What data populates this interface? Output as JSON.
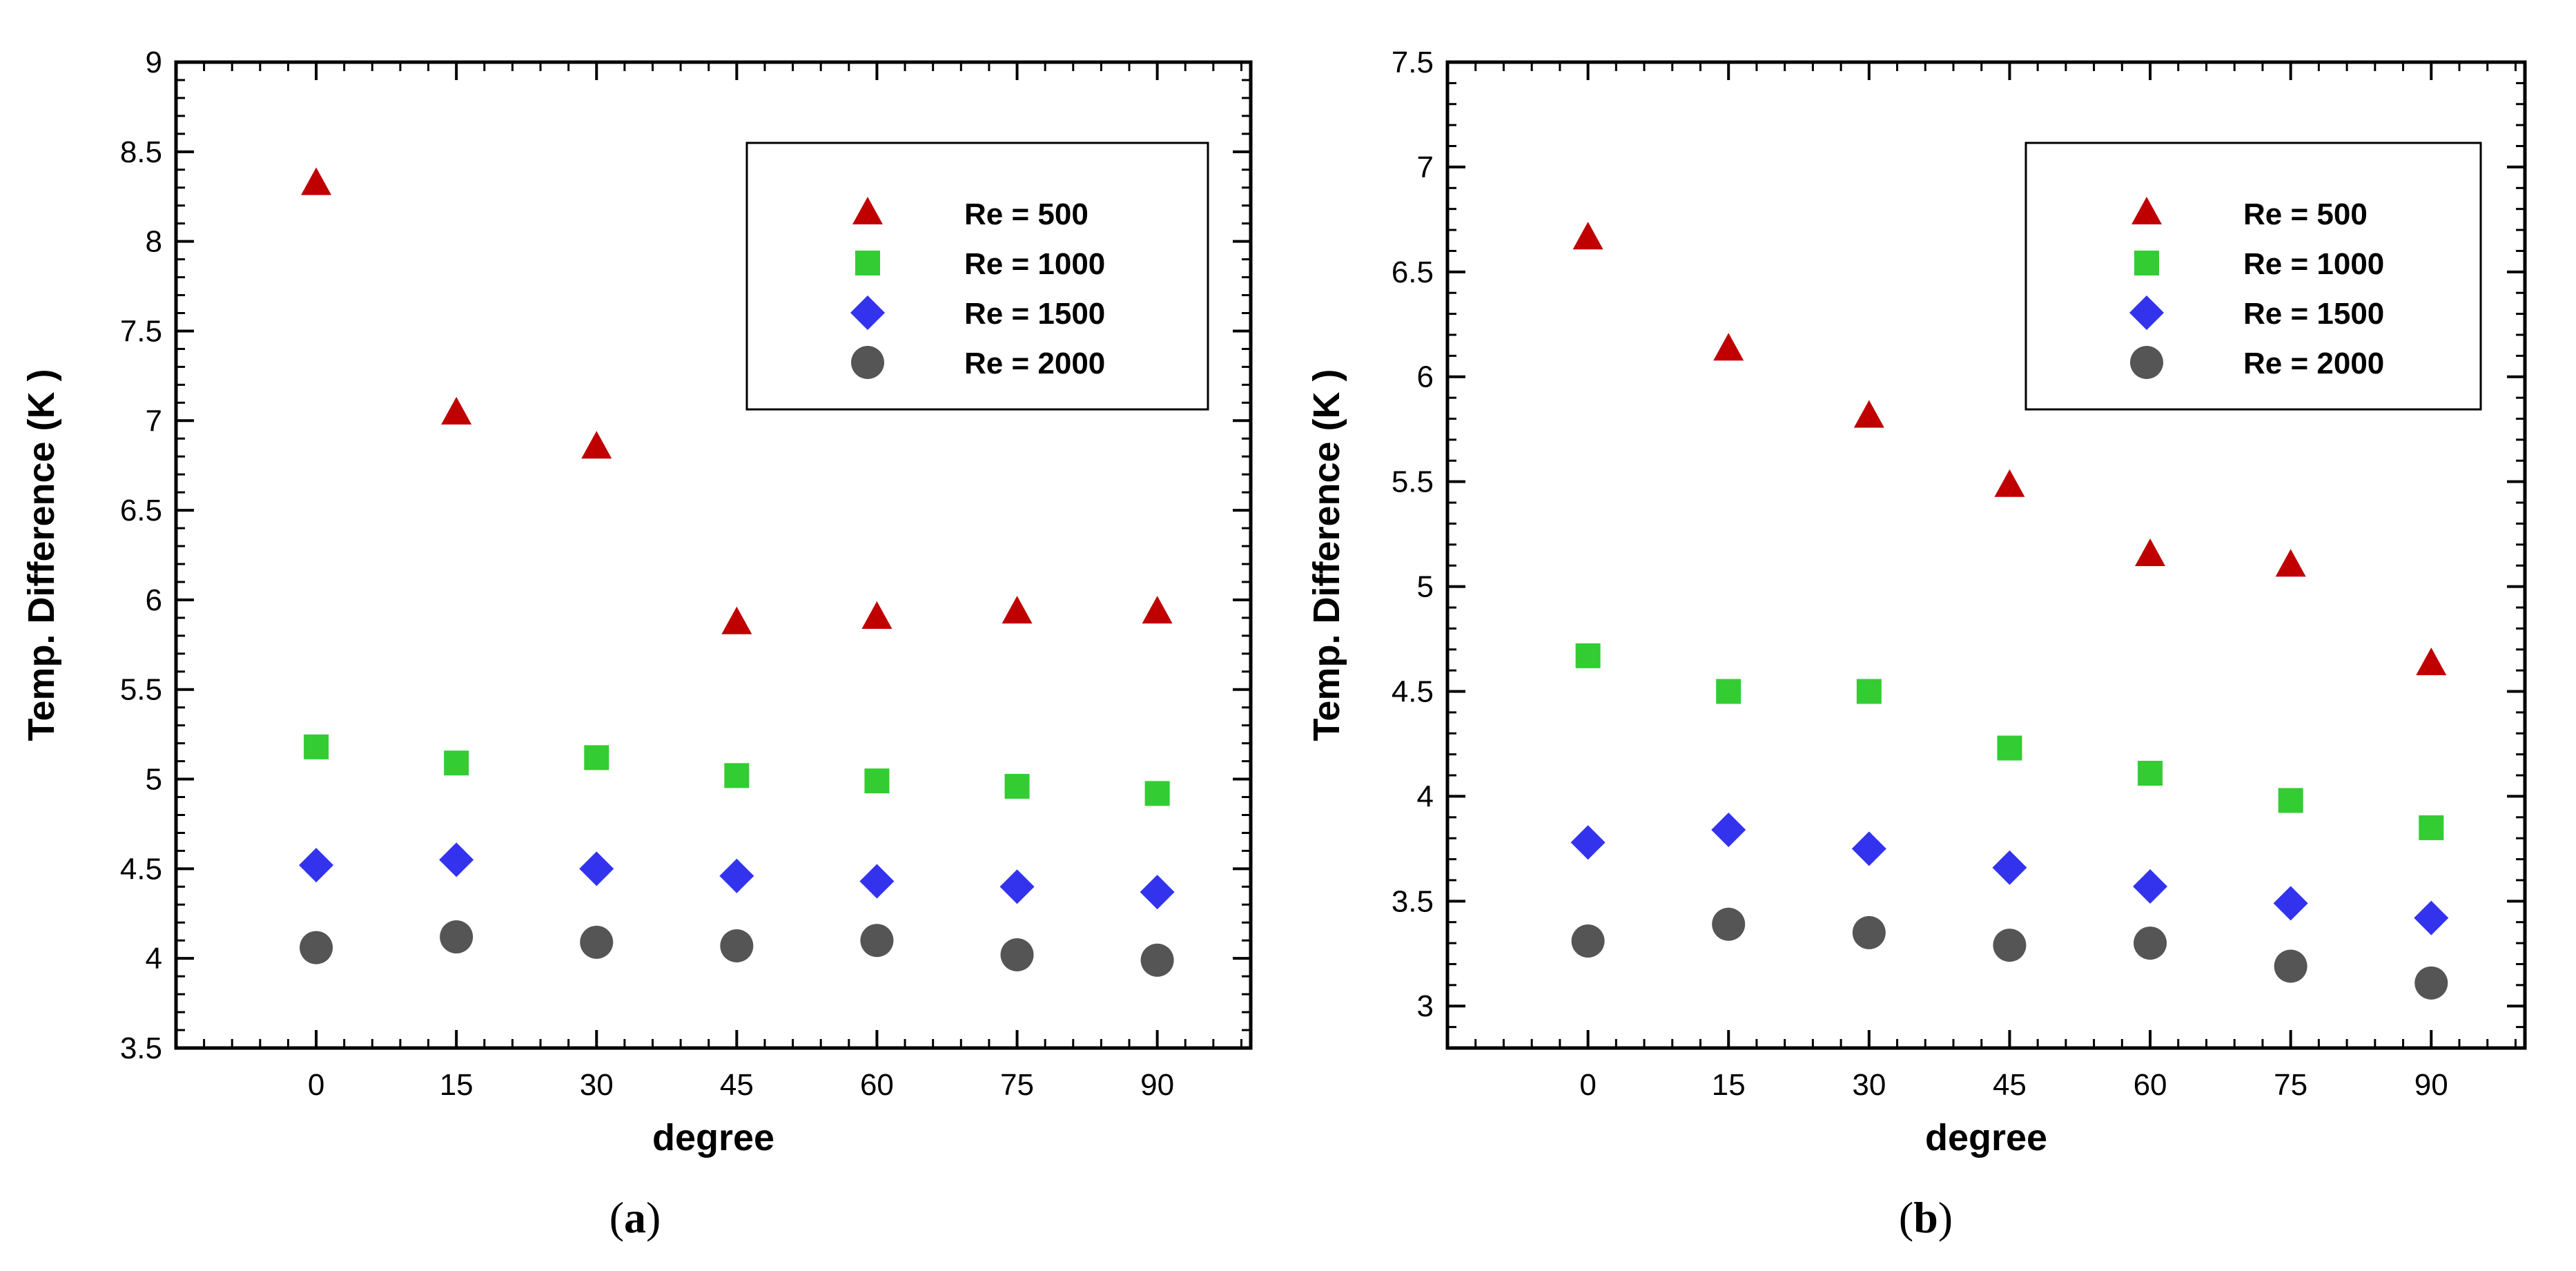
{
  "chart_data": [
    {
      "id": "a",
      "type": "scatter",
      "panel_label": "a",
      "xlabel": "degree",
      "ylabel": "Temp. Difference (K )",
      "x": [
        0,
        15,
        30,
        45,
        60,
        75,
        90
      ],
      "xticks": [
        "0",
        "15",
        "30",
        "45",
        "60",
        "75",
        "90"
      ],
      "xlim": [
        -15,
        100
      ],
      "ylim": [
        3.5,
        9
      ],
      "yticks": [
        "3.5",
        "4",
        "4.5",
        "5",
        "5.5",
        "6",
        "6.5",
        "7",
        "7.5",
        "8",
        "8.5",
        "9"
      ],
      "legend_position": "top-right",
      "series": [
        {
          "name": "Re = 500",
          "marker": "triangle",
          "color": "#c00000",
          "values": [
            8.32,
            7.04,
            6.85,
            5.87,
            5.9,
            5.93,
            5.93
          ]
        },
        {
          "name": "Re = 1000",
          "marker": "square",
          "color": "#33cc33",
          "values": [
            5.18,
            5.09,
            5.12,
            5.02,
            4.99,
            4.96,
            4.92
          ]
        },
        {
          "name": "Re = 1500",
          "marker": "diamond",
          "color": "#3333ee",
          "values": [
            4.52,
            4.55,
            4.5,
            4.46,
            4.43,
            4.4,
            4.37
          ]
        },
        {
          "name": "Re = 2000",
          "marker": "circle",
          "color": "#555555",
          "values": [
            4.06,
            4.12,
            4.09,
            4.07,
            4.1,
            4.02,
            3.99
          ]
        }
      ]
    },
    {
      "id": "b",
      "type": "scatter",
      "panel_label": "b",
      "xlabel": "degree",
      "ylabel": "Temp. Difference (K )",
      "x": [
        0,
        15,
        30,
        45,
        60,
        75,
        90
      ],
      "xticks": [
        "0",
        "15",
        "30",
        "45",
        "60",
        "75",
        "90"
      ],
      "xlim": [
        -15,
        100
      ],
      "ylim": [
        2.8,
        7.5
      ],
      "yticks": [
        "3",
        "3.5",
        "4",
        "4.5",
        "5",
        "5.5",
        "6",
        "6.5",
        "7",
        "7.5"
      ],
      "legend_position": "top-right",
      "series": [
        {
          "name": "Re = 500",
          "marker": "triangle",
          "color": "#c00000",
          "values": [
            6.66,
            6.13,
            5.81,
            5.48,
            5.15,
            5.1,
            4.63
          ]
        },
        {
          "name": "Re = 1000",
          "marker": "square",
          "color": "#33cc33",
          "values": [
            4.67,
            4.5,
            4.5,
            4.23,
            4.11,
            3.98,
            3.85
          ]
        },
        {
          "name": "Re = 1500",
          "marker": "diamond",
          "color": "#3333ee",
          "values": [
            3.78,
            3.84,
            3.75,
            3.66,
            3.57,
            3.49,
            3.42
          ]
        },
        {
          "name": "Re = 2000",
          "marker": "circle",
          "color": "#555555",
          "values": [
            3.31,
            3.39,
            3.35,
            3.29,
            3.3,
            3.19,
            3.11
          ]
        }
      ]
    }
  ]
}
